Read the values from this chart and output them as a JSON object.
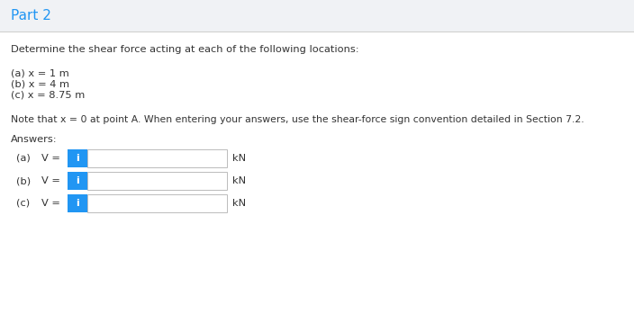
{
  "title": "Part 2",
  "title_color": "#2196F3",
  "bg_color": "#f0f2f5",
  "content_bg": "#ffffff",
  "header_bg": "#f0f2f5",
  "separator_color": "#d0d0d0",
  "question_text": "Determine the shear force acting at each of the following locations:",
  "items": [
    "(a) x = 1 m",
    "(b) x = 4 m",
    "(c) x = 8.75 m"
  ],
  "note_text": "Note that x = 0 at point A. When entering your answers, use the shear-force sign convention detailed in Section 7.2.",
  "answers_label": "Answers:",
  "answer_labels": [
    "(a)",
    "(b)",
    "(c)"
  ],
  "var_label": "V =",
  "unit": "kN",
  "button_color": "#2196F3",
  "button_text": "i",
  "button_text_color": "#ffffff",
  "input_bg": "#ffffff",
  "input_border": "#bbbbbb",
  "text_color": "#333333"
}
